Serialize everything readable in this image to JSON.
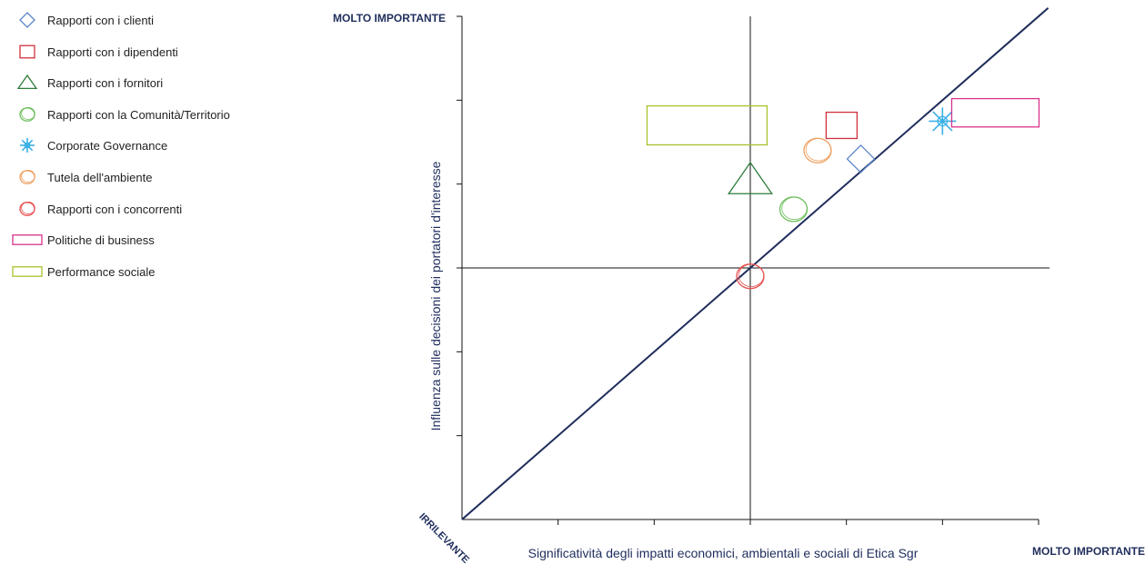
{
  "chart_data": {
    "type": "scatter",
    "xlabel": "Significatività degli impatti economici, ambientali e sociali di Etica Sgr",
    "ylabel": "Influenza sulle decisioni dei portatori d'interesse",
    "xlim": [
      0,
      6
    ],
    "ylim": [
      0,
      6
    ],
    "x_low_label": "IRRILEVANTE",
    "x_high_label": "MOLTO IMPORTANTE",
    "y_high_label": "MOLTO IMPORTANTE",
    "grid": false,
    "legend_position": "left",
    "series": [
      {
        "name": "Rapporti con i clienti",
        "shape": "diamond",
        "color": "#5b86c8",
        "x": 4.15,
        "y": 4.3
      },
      {
        "name": "Rapporti con i dipendenti",
        "shape": "square",
        "color": "#d0313d",
        "x": 3.95,
        "y": 4.7
      },
      {
        "name": "Rapporti con i fornitori",
        "shape": "triangle",
        "color": "#2e7d3c",
        "x": 3.0,
        "y": 4.05
      },
      {
        "name": "Rapporti con la Comunità/Territorio",
        "shape": "circle",
        "color": "#6fbf5f",
        "x": 3.45,
        "y": 3.7
      },
      {
        "name": "Corporate Governance",
        "shape": "snowflake",
        "color": "#3ab0e6",
        "x": 5.0,
        "y": 4.75
      },
      {
        "name": "Tutela dell'ambiente",
        "shape": "circle",
        "color": "#f0a060",
        "x": 3.7,
        "y": 4.4
      },
      {
        "name": "Rapporti con i concorrenti",
        "shape": "circle",
        "color": "#e85050",
        "x": 3.0,
        "y": 2.9
      },
      {
        "name": "Politiche di business",
        "shape": "wide-rect",
        "color": "#d8338a",
        "x": 5.55,
        "y": 4.85
      },
      {
        "name": "Performance sociale",
        "shape": "wide-rect",
        "color": "#a6c42a",
        "x": 2.55,
        "y": 4.7
      }
    ],
    "axis_color": "#1f2d5c"
  }
}
